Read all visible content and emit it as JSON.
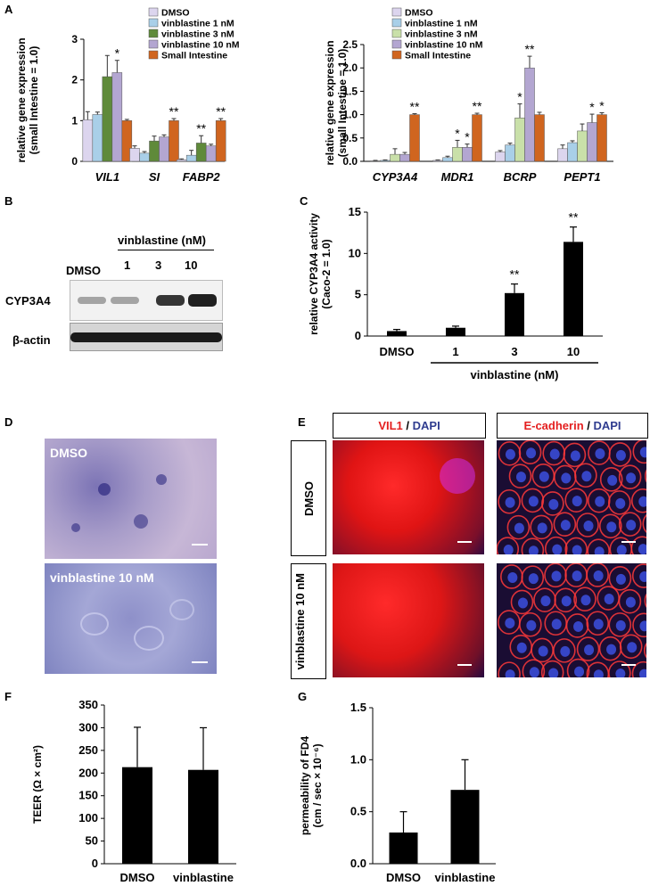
{
  "panels": {
    "A": "A",
    "B": "B",
    "C": "C",
    "D": "D",
    "E": "E",
    "F": "F",
    "G": "G"
  },
  "significance": {
    "single": "*",
    "double": "**"
  },
  "colors": {
    "DMSO": "#dcd5ee",
    "vinblastine 1 nM": "#a9cfe8",
    "vinblastine 3 nM": "#5f8a3a",
    "vinblastine 3 nM (A right)": "#c9e0a9",
    "vinblastine 10 nM": "#b3a6d1",
    "Small Intestine": "#d0651f",
    "bar": "#000000"
  },
  "chart_data": [
    {
      "id": "A-left",
      "type": "bar",
      "categories": [
        "VIL1",
        "SI",
        "FABP2"
      ],
      "ylabel": "relative gene expression (small Intestine = 1.0)",
      "ylim": [
        0,
        3
      ],
      "yticks": [
        0,
        1,
        2,
        3
      ],
      "legend": [
        "DMSO",
        "vinblastine 1 nM",
        "vinblastine 3 nM",
        "vinblastine 10 nM",
        "Small Intestine"
      ],
      "series": [
        {
          "name": "DMSO",
          "values": [
            1.02,
            0.32,
            0.04
          ],
          "errors": [
            0.2,
            0.06,
            0.02
          ]
        },
        {
          "name": "vinblastine 1 nM",
          "values": [
            1.15,
            0.2,
            0.15
          ],
          "errors": [
            0.06,
            0.04,
            0.12
          ]
        },
        {
          "name": "vinblastine 3 nM",
          "values": [
            2.08,
            0.5,
            0.45
          ],
          "errors": [
            0.52,
            0.12,
            0.18
          ]
        },
        {
          "name": "vinblastine 10 nM",
          "values": [
            2.18,
            0.6,
            0.38
          ],
          "errors": [
            0.3,
            0.05,
            0.04
          ]
        },
        {
          "name": "Small Intestine",
          "values": [
            1.0,
            1.0,
            1.0
          ],
          "errors": [
            0.03,
            0.05,
            0.05
          ]
        }
      ],
      "annotations": [
        {
          "category": "VIL1",
          "series": "vinblastine 10 nM",
          "text": "*"
        },
        {
          "category": "SI",
          "series": "Small Intestine",
          "text": "**"
        },
        {
          "category": "FABP2",
          "series": "vinblastine 3 nM",
          "text": "**"
        },
        {
          "category": "FABP2",
          "series": "Small Intestine",
          "text": "**"
        }
      ]
    },
    {
      "id": "A-right",
      "type": "bar",
      "categories": [
        "CYP3A4",
        "MDR1",
        "BCRP",
        "PEPT1"
      ],
      "ylabel": "relative gene expression (small Intestine = 1.0)",
      "ylim": [
        0,
        2.5
      ],
      "yticks": [
        0,
        0.5,
        1.0,
        1.5,
        2.0,
        2.5
      ],
      "legend": [
        "DMSO",
        "vinblastine 1 nM",
        "vinblastine 3 nM",
        "vinblastine 10 nM",
        "Small Intestine"
      ],
      "series": [
        {
          "name": "DMSO",
          "values": [
            0.01,
            0.02,
            0.2,
            0.27
          ],
          "errors": [
            0.01,
            0.01,
            0.03,
            0.08
          ]
        },
        {
          "name": "vinblastine 1 nM",
          "values": [
            0.02,
            0.08,
            0.35,
            0.4
          ],
          "errors": [
            0.01,
            0.03,
            0.04,
            0.04
          ]
        },
        {
          "name": "vinblastine 3 nM",
          "values": [
            0.15,
            0.3,
            0.93,
            0.65
          ],
          "errors": [
            0.12,
            0.15,
            0.3,
            0.15
          ]
        },
        {
          "name": "vinblastine 10 nM",
          "values": [
            0.15,
            0.3,
            2.0,
            0.83
          ],
          "errors": [
            0.04,
            0.07,
            0.25,
            0.18
          ]
        },
        {
          "name": "Small Intestine",
          "values": [
            1.0,
            1.0,
            1.0,
            1.0
          ],
          "errors": [
            0.02,
            0.03,
            0.05,
            0.04
          ]
        }
      ],
      "annotations": [
        {
          "category": "CYP3A4",
          "series": "Small Intestine",
          "text": "**"
        },
        {
          "category": "MDR1",
          "series": "vinblastine 3 nM",
          "text": "*"
        },
        {
          "category": "MDR1",
          "series": "vinblastine 10 nM",
          "text": "*"
        },
        {
          "category": "MDR1",
          "series": "Small Intestine",
          "text": "**"
        },
        {
          "category": "BCRP",
          "series": "vinblastine 3 nM",
          "text": "*"
        },
        {
          "category": "BCRP",
          "series": "vinblastine 10 nM",
          "text": "**"
        },
        {
          "category": "PEPT1",
          "series": "vinblastine 10 nM",
          "text": "*"
        },
        {
          "category": "PEPT1",
          "series": "Small Intestine",
          "text": "*"
        }
      ]
    },
    {
      "id": "C",
      "type": "bar",
      "categories": [
        "DMSO",
        "1",
        "3",
        "10"
      ],
      "values": [
        0.6,
        1.0,
        5.2,
        11.4
      ],
      "errors": [
        0.2,
        0.2,
        1.1,
        1.8
      ],
      "ylabel": "relative CYP3A4 activity (Caco-2 = 1.0)",
      "xgroup_label": "vinblastine (nM)",
      "ylim": [
        0,
        15
      ],
      "yticks": [
        0,
        5,
        10,
        15
      ],
      "annotations": [
        {
          "category": "3",
          "text": "**"
        },
        {
          "category": "10",
          "text": "**"
        }
      ]
    },
    {
      "id": "F",
      "type": "bar",
      "categories": [
        "DMSO",
        "vinblastine"
      ],
      "values": [
        213,
        207
      ],
      "errors": [
        88,
        93
      ],
      "ylabel": "TEER (Ω × cm²)",
      "ylim": [
        0,
        350
      ],
      "yticks": [
        0,
        50,
        100,
        150,
        200,
        250,
        300,
        350
      ]
    },
    {
      "id": "G",
      "type": "bar",
      "categories": [
        "DMSO",
        "vinblastine"
      ],
      "values": [
        0.3,
        0.71
      ],
      "errors": [
        0.2,
        0.29
      ],
      "ylabel": "permeability of FD4 (cm / sec × 10⁻⁶)",
      "ylim": [
        0,
        1.5
      ],
      "yticks": [
        0.0,
        0.5,
        1.0,
        1.5
      ]
    }
  ],
  "western": {
    "group_label": "vinblastine (nM)",
    "lanes": [
      "DMSO",
      "1",
      "3",
      "10"
    ],
    "rows": [
      "CYP3A4",
      "β-actin"
    ],
    "cyp_intensity": [
      0.35,
      0.35,
      0.85,
      0.95
    ]
  },
  "panel_D": {
    "top_label": "DMSO",
    "bottom_label": "vinblastine 10 nM"
  },
  "panel_E": {
    "col1": {
      "part1": "VIL1",
      "sep": " / ",
      "part2": "DAPI"
    },
    "col2": {
      "part1": "E-cadherin",
      "sep": " / ",
      "part2": "DAPI"
    },
    "row1": "DMSO",
    "row2": "vinblastine 10 nM",
    "color_red": "#e41f1f",
    "color_blue": "#2f3c8f"
  }
}
